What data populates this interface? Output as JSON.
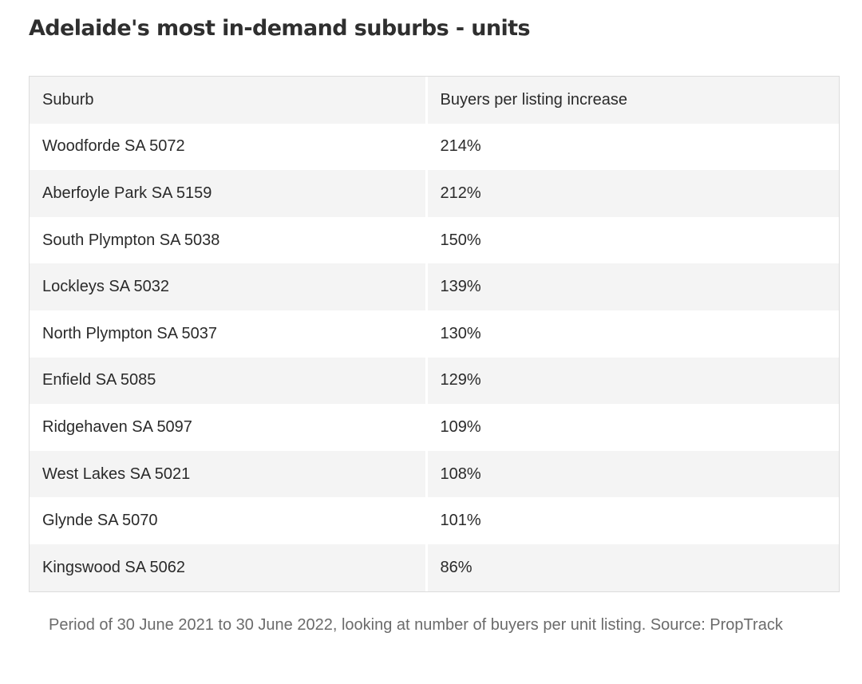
{
  "title": "Adelaide's most in-demand suburbs - units",
  "table": {
    "headers": [
      "Suburb",
      "Buyers per listing increase"
    ],
    "rows": [
      {
        "suburb": "Woodforde SA 5072",
        "increase": "214%"
      },
      {
        "suburb": "Aberfoyle Park SA 5159",
        "increase": "212%"
      },
      {
        "suburb": "South Plympton SA 5038",
        "increase": "150%"
      },
      {
        "suburb": "Lockleys SA 5032",
        "increase": "139%"
      },
      {
        "suburb": "North Plympton SA 5037",
        "increase": "130%"
      },
      {
        "suburb": "Enfield SA 5085",
        "increase": "129%"
      },
      {
        "suburb": "Ridgehaven SA 5097",
        "increase": "109%"
      },
      {
        "suburb": "West Lakes SA 5021",
        "increase": "108%"
      },
      {
        "suburb": "Glynde SA 5070",
        "increase": "101%"
      },
      {
        "suburb": "Kingswood SA 5062",
        "increase": "86%"
      }
    ]
  },
  "footnote": "Period of 30 June 2021 to 30 June 2022, looking at number of buyers per unit listing. Source: PropTrack"
}
